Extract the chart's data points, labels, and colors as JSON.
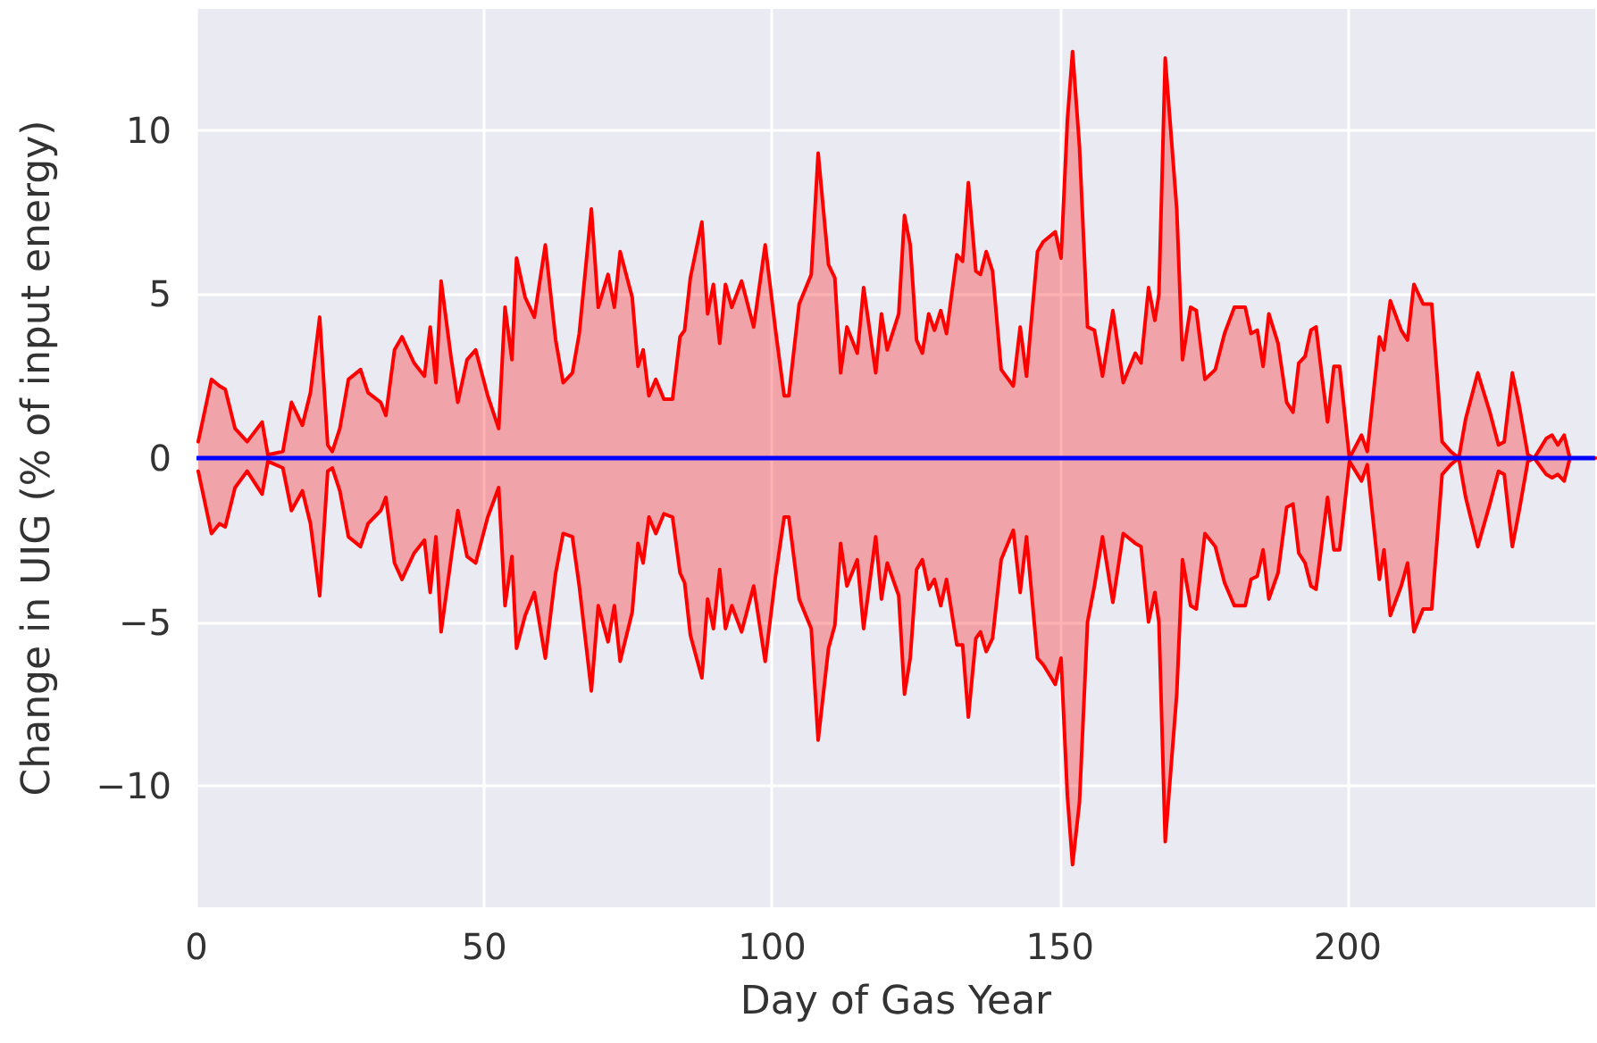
{
  "chart_data": {
    "type": "area",
    "xlabel": "Day of Gas Year",
    "ylabel": "Change in UIG (% of input energy)",
    "x": [
      0.3,
      2.6,
      4,
      5,
      6.7,
      8.8,
      11.4,
      12.4,
      15,
      16.5,
      18.4,
      19.8,
      21.4,
      22.8,
      23.6,
      24.9,
      26.4,
      28.5,
      29.8,
      32,
      32.9,
      34.4,
      35.7,
      37.8,
      39.6,
      40.6,
      41.6,
      42.5,
      44.2,
      45.4,
      47,
      48.5,
      50.6,
      52.5,
      53.6,
      54.8,
      55.6,
      57.1,
      58.7,
      60.6,
      62.4,
      63.7,
      65.3,
      66.5,
      68.6,
      69.8,
      71.5,
      72.6,
      73.6,
      75.7,
      76.7,
      77.6,
      78.6,
      79.8,
      81.2,
      82.7,
      84,
      84.8,
      85.8,
      87.8,
      88.8,
      89.8,
      90.9,
      91.9,
      93,
      94.7,
      96.8,
      98.8,
      100.6,
      102.1,
      102.9,
      104.7,
      106.8,
      108,
      109.8,
      110.9,
      111.9,
      113,
      114.8,
      115.9,
      118,
      119,
      120,
      122,
      123,
      124,
      125.1,
      126.1,
      127.2,
      128.2,
      129.3,
      130.3,
      132.1,
      133.1,
      134.1,
      135.4,
      136.2,
      137.2,
      138.3,
      139.8,
      141.9,
      143.1,
      144.2,
      146.1,
      147.1,
      149.2,
      150.2,
      151.3,
      152.2,
      153.4,
      154.8,
      156,
      157.4,
      159.2,
      161,
      163.1,
      164.1,
      165.4,
      166.5,
      167.2,
      168.3,
      170.3,
      171.3,
      172.7,
      173.7,
      175.2,
      177,
      178.6,
      180.3,
      182.2,
      183.2,
      184.3,
      185.3,
      186.3,
      187.9,
      189.4,
      190.5,
      191.5,
      192.6,
      193.6,
      194.5,
      196.5,
      197.6,
      198.6,
      200.3,
      202.4,
      203.4,
      205.5,
      206.3,
      207.4,
      209.3,
      210.4,
      211.5,
      213.1,
      214.6,
      216.4,
      217.9,
      219.3,
      220.5,
      222.6,
      224.7,
      226.2,
      227.2,
      228.6,
      229.8,
      231.3,
      232.4,
      234.5,
      235.5,
      236.5,
      237.6,
      238.6,
      243
    ],
    "series": [
      {
        "color": "#ff0000",
        "values": [
          0.5,
          2.4,
          2.2,
          2.1,
          0.9,
          0.5,
          1.1,
          0.1,
          0.2,
          1.7,
          1.0,
          2.0,
          4.3,
          0.4,
          0.2,
          0.9,
          2.4,
          2.7,
          2.0,
          1.7,
          1.3,
          3.3,
          3.7,
          2.9,
          2.5,
          4.0,
          2.3,
          5.4,
          3.1,
          1.7,
          3.0,
          3.3,
          1.9,
          0.9,
          4.6,
          3.0,
          6.1,
          4.9,
          4.3,
          6.5,
          3.6,
          2.3,
          2.6,
          3.8,
          7.6,
          4.6,
          5.6,
          4.6,
          6.3,
          4.9,
          2.8,
          3.3,
          1.9,
          2.4,
          1.8,
          1.8,
          3.7,
          3.9,
          5.5,
          7.2,
          4.4,
          5.3,
          3.5,
          5.3,
          4.6,
          5.4,
          4.0,
          6.5,
          3.9,
          1.9,
          1.9,
          4.7,
          5.6,
          9.3,
          5.9,
          5.5,
          2.6,
          4.0,
          3.2,
          5.2,
          2.6,
          4.4,
          3.3,
          4.4,
          7.4,
          6.5,
          3.6,
          3.2,
          4.4,
          3.9,
          4.5,
          3.8,
          6.2,
          6.0,
          8.4,
          5.7,
          5.6,
          6.3,
          5.7,
          2.7,
          2.2,
          4.0,
          2.5,
          6.3,
          6.6,
          6.9,
          6.1,
          10.3,
          12.4,
          9.5,
          4.0,
          3.9,
          2.5,
          4.5,
          2.3,
          3.2,
          2.9,
          5.2,
          4.2,
          5.0,
          12.2,
          7.6,
          3.0,
          4.6,
          4.5,
          2.4,
          2.7,
          3.8,
          4.6,
          4.6,
          3.8,
          3.9,
          2.8,
          4.4,
          3.5,
          1.7,
          1.4,
          2.9,
          3.1,
          3.9,
          4.0,
          1.1,
          2.8,
          2.8,
          0.0,
          0.7,
          0.2,
          3.7,
          3.3,
          4.8,
          3.9,
          3.6,
          5.3,
          4.7,
          4.7,
          0.5,
          0.2,
          0.0,
          1.2,
          2.6,
          1.4,
          0.4,
          0.5,
          2.6,
          1.6,
          0.1,
          0.0,
          0.6,
          0.7,
          0.4,
          0.7,
          0.0,
          0.0
        ]
      },
      {
        "color": "#ff0000",
        "values": [
          -0.4,
          -2.3,
          -2.0,
          -2.1,
          -0.9,
          -0.4,
          -1.1,
          -0.1,
          -0.3,
          -1.6,
          -1.0,
          -2.0,
          -4.2,
          -0.4,
          -0.3,
          -1.0,
          -2.4,
          -2.7,
          -2.0,
          -1.6,
          -1.2,
          -3.2,
          -3.7,
          -2.9,
          -2.5,
          -4.1,
          -2.4,
          -5.3,
          -3.1,
          -1.6,
          -3.0,
          -3.2,
          -1.8,
          -0.9,
          -4.5,
          -3.0,
          -5.8,
          -4.8,
          -4.1,
          -6.1,
          -3.5,
          -2.3,
          -2.4,
          -3.9,
          -7.1,
          -4.5,
          -5.6,
          -4.5,
          -6.2,
          -4.7,
          -2.6,
          -3.2,
          -1.8,
          -2.3,
          -1.7,
          -1.8,
          -3.5,
          -3.8,
          -5.4,
          -6.7,
          -4.3,
          -5.2,
          -3.4,
          -5.2,
          -4.5,
          -5.3,
          -3.9,
          -6.2,
          -3.6,
          -1.8,
          -1.8,
          -4.3,
          -5.2,
          -8.6,
          -5.8,
          -5.1,
          -2.6,
          -3.9,
          -3.1,
          -5.2,
          -2.4,
          -4.3,
          -3.2,
          -4.2,
          -7.2,
          -6.1,
          -3.4,
          -3.1,
          -4.0,
          -3.7,
          -4.5,
          -3.7,
          -5.7,
          -5.7,
          -7.9,
          -5.5,
          -5.3,
          -5.9,
          -5.5,
          -3.1,
          -2.2,
          -4.1,
          -2.4,
          -6.1,
          -6.3,
          -6.9,
          -6.1,
          -10.3,
          -12.4,
          -10.5,
          -5.0,
          -3.9,
          -2.4,
          -4.4,
          -2.3,
          -2.6,
          -2.7,
          -5.0,
          -4.1,
          -5.0,
          -11.7,
          -7.2,
          -3.1,
          -4.5,
          -4.6,
          -2.3,
          -2.7,
          -3.8,
          -4.5,
          -4.5,
          -3.7,
          -3.6,
          -2.8,
          -4.3,
          -3.5,
          -1.5,
          -1.4,
          -2.9,
          -3.2,
          -3.9,
          -4.0,
          -1.2,
          -2.8,
          -2.8,
          -0.1,
          -0.7,
          -0.2,
          -3.7,
          -2.8,
          -4.8,
          -3.9,
          -3.2,
          -5.3,
          -4.6,
          -4.6,
          -0.5,
          -0.2,
          0.0,
          -1.2,
          -2.7,
          -1.4,
          -0.4,
          -0.5,
          -2.7,
          -1.6,
          -0.1,
          0.0,
          -0.5,
          -0.6,
          -0.5,
          -0.7,
          0.0,
          0.0
        ]
      }
    ],
    "ref_lines": [
      {
        "axis": "y",
        "value": 0,
        "color": "#0000ff"
      }
    ],
    "xlim": [
      0,
      243
    ],
    "xticks": [
      0,
      50,
      100,
      150,
      200
    ],
    "ylim": [
      -13.7,
      13.7
    ],
    "yticks": [
      {
        "value": -10,
        "label": "−10"
      },
      {
        "value": -5,
        "label": "−5"
      },
      0,
      5,
      10
    ],
    "grid": true,
    "marker": "none",
    "line_style": "solid"
  }
}
